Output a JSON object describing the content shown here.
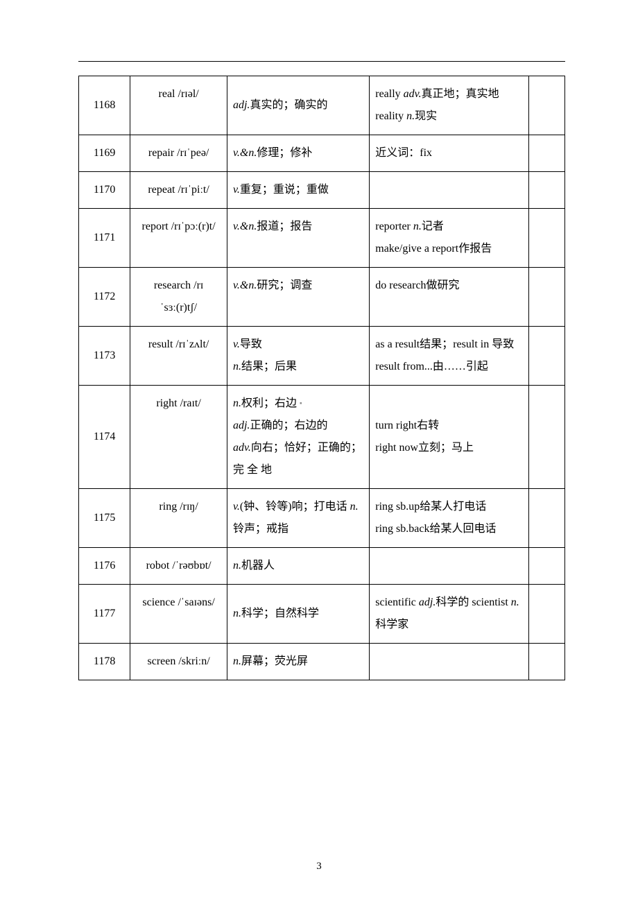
{
  "pageNumber": "3",
  "rows": [
    {
      "num": "1168",
      "word": "real /rɪəl/",
      "def": [
        [
          {
            "t": "adj.",
            "i": true
          },
          {
            "t": "真实的；确实的"
          }
        ]
      ],
      "extra": [
        [
          {
            "t": "really "
          },
          {
            "t": "adv.",
            "i": true
          },
          {
            "t": "真正地；真实地  reality "
          },
          {
            "t": "n.",
            "i": true
          },
          {
            "t": "现实"
          }
        ]
      ],
      "defVAlign": "middle"
    },
    {
      "num": "1169",
      "word": "repair /rɪˈpeə/",
      "def": [
        [
          {
            "t": "v.&n.",
            "i": true
          },
          {
            "t": "修理；修补"
          }
        ]
      ],
      "extra": [
        [
          {
            "t": "近义词：fix"
          }
        ]
      ]
    },
    {
      "num": "1170",
      "word": "repeat /rɪˈpiːt/",
      "def": [
        [
          {
            "t": "v.",
            "i": true
          },
          {
            "t": "重复；重说；重做"
          }
        ]
      ],
      "extra": []
    },
    {
      "num": "1171",
      "word": "report /rɪˈpɔː(r)t/",
      "def": [
        [
          {
            "t": "v.&n.",
            "i": true
          },
          {
            "t": "报道；报告"
          }
        ]
      ],
      "extra": [
        [
          {
            "t": "reporter "
          },
          {
            "t": "n.",
            "i": true
          },
          {
            "t": "记者"
          }
        ],
        [
          {
            "t": "make/give a report作报告"
          }
        ]
      ]
    },
    {
      "num": "1172",
      "word": "research /rɪˈsɜː(r)tʃ/",
      "def": [
        [
          {
            "t": "v.&n.",
            "i": true
          },
          {
            "t": "研究；调查"
          }
        ]
      ],
      "extra": [
        [
          {
            "t": "do research做研究"
          }
        ]
      ]
    },
    {
      "num": "1173",
      "word": "result /rɪˈzʌlt/",
      "def": [
        [
          {
            "t": "v.",
            "i": true
          },
          {
            "t": "导致"
          }
        ],
        [
          {
            "t": "n.",
            "i": true
          },
          {
            "t": "结果；后果"
          }
        ]
      ],
      "extra": [
        [
          {
            "t": "as a result结果；result  in 导致  result from...由……引起"
          }
        ]
      ]
    },
    {
      "num": "1174",
      "word": "right /raɪt/",
      "def": [
        [
          {
            "t": "n.",
            "i": true
          },
          {
            "t": "权利；右边 "
          },
          {
            "t": "",
            "marker": true
          }
        ],
        [
          {
            "t": "adj.",
            "i": true
          },
          {
            "t": "正确的；右边的"
          }
        ],
        [
          {
            "t": "adv.",
            "i": true
          },
          {
            "t": "向右；恰好；正确的；  完 全 地"
          }
        ]
      ],
      "extra": [
        [
          {
            "t": "turn right右转"
          }
        ],
        [
          {
            "t": "right now立刻；马上"
          }
        ]
      ],
      "extraVAlign": "middle"
    },
    {
      "num": "1175",
      "word": "ring /rɪŋ/",
      "def": [
        [
          {
            "t": "v.",
            "i": true
          },
          {
            "t": "(钟、铃等)响；打电话  "
          },
          {
            "t": "n.",
            "i": true
          },
          {
            "t": "铃声；戒指"
          }
        ]
      ],
      "extra": [
        [
          {
            "t": "ring sb.up给某人打电话"
          }
        ],
        [
          {
            "t": "ring sb.back给某人回电话"
          }
        ]
      ]
    },
    {
      "num": "1176",
      "word": "robot /ˈrəʊbɒt/",
      "def": [
        [
          {
            "t": "n.",
            "i": true
          },
          {
            "t": "机器人"
          }
        ]
      ],
      "extra": []
    },
    {
      "num": "1177",
      "word": "science /ˈsaɪəns/",
      "def": [
        [
          {
            "t": "n.",
            "i": true
          },
          {
            "t": "科学；自然科学"
          }
        ]
      ],
      "extra": [
        [
          {
            "t": "scientific "
          },
          {
            "t": "adj.",
            "i": true
          },
          {
            "t": "科学的 scientist "
          },
          {
            "t": "n.",
            "i": true
          },
          {
            "t": "科学家"
          }
        ]
      ],
      "defVAlign": "middle"
    },
    {
      "num": "1178",
      "word": "screen /skriːn/",
      "def": [
        [
          {
            "t": "n.",
            "i": true
          },
          {
            "t": "屏幕；荧光屏"
          }
        ]
      ],
      "extra": []
    }
  ]
}
